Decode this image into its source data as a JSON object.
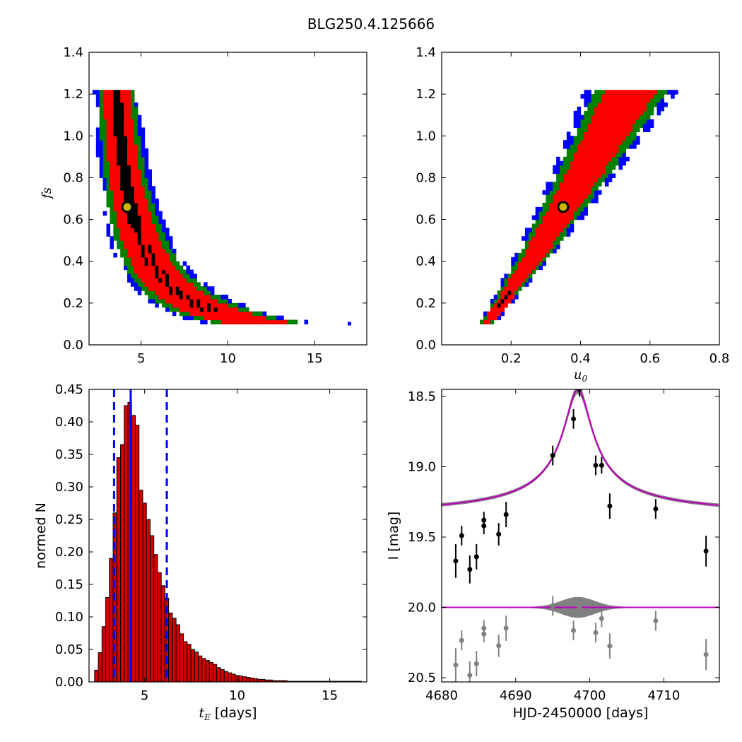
{
  "title": "BLG250.4.125666",
  "colors": {
    "blue": "#0000ff",
    "green": "#008000",
    "red": "#ff0000",
    "black": "#000000",
    "marker_fill": "#c8b400",
    "magenta": "#bf00bf",
    "grey": "#808080",
    "bar": "#d40000"
  },
  "chart_data": [
    {
      "type": "heatmap",
      "panel": "top-left",
      "xlabel": "",
      "ylabel": "f_s",
      "xlim": [
        2,
        18
      ],
      "ylim": [
        0.0,
        1.4
      ],
      "xticks": [
        "5",
        "10",
        "15"
      ],
      "yticks": [
        "0.0",
        "0.2",
        "0.4",
        "0.6",
        "0.8",
        "1.0",
        "1.2",
        "1.4"
      ],
      "best_fit": {
        "tE": 4.2,
        "fs": 0.66
      },
      "levels": [
        "black",
        "red",
        "green",
        "blue"
      ]
    },
    {
      "type": "heatmap",
      "panel": "top-right",
      "xlabel": "u_0",
      "ylabel": "",
      "xlim": [
        0.0,
        0.8
      ],
      "ylim": [
        0.0,
        1.4
      ],
      "xticks": [
        "0.2",
        "0.4",
        "0.6",
        "0.8"
      ],
      "yticks": [
        "0.0",
        "0.2",
        "0.4",
        "0.6",
        "0.8",
        "1.0",
        "1.2",
        "1.4"
      ],
      "best_fit": {
        "u0": 0.35,
        "fs": 0.66
      },
      "levels": [
        "black",
        "red",
        "green",
        "blue"
      ]
    },
    {
      "type": "bar",
      "panel": "bottom-left",
      "xlabel": "t_E [days]",
      "ylabel": "normed N",
      "xlim": [
        2,
        17
      ],
      "ylim": [
        0.0,
        0.45
      ],
      "xticks": [
        "5",
        "10",
        "15"
      ],
      "yticks": [
        "0.00",
        "0.05",
        "0.10",
        "0.15",
        "0.20",
        "0.25",
        "0.30",
        "0.35",
        "0.40",
        "0.45"
      ],
      "bin_start": 2.3,
      "bin_width": 0.2,
      "values": [
        0.018,
        0.045,
        0.085,
        0.13,
        0.19,
        0.26,
        0.345,
        0.365,
        0.425,
        0.43,
        0.41,
        0.395,
        0.295,
        0.275,
        0.25,
        0.225,
        0.196,
        0.168,
        0.148,
        0.129,
        0.106,
        0.098,
        0.088,
        0.074,
        0.062,
        0.058,
        0.05,
        0.046,
        0.04,
        0.036,
        0.033,
        0.03,
        0.027,
        0.022,
        0.019,
        0.016,
        0.014,
        0.012,
        0.01,
        0.009,
        0.008,
        0.007,
        0.006,
        0.005,
        0.004,
        0.004,
        0.003,
        0.003,
        0.002,
        0.002,
        0.002,
        0.002,
        0.001,
        0.001,
        0.001,
        0.001,
        0.001,
        0.001,
        0.001,
        0.001,
        0.001,
        0.001,
        0.001,
        0.001,
        0.001,
        0.001,
        0.001,
        0.001,
        0.001,
        0.001,
        0.001,
        0.001
      ],
      "median": 4.25,
      "percentile_lines": [
        3.35,
        6.2
      ]
    },
    {
      "type": "scatter",
      "panel": "bottom-right",
      "xlabel": "HJD-2450000 [days]",
      "ylabel": "I [mag]",
      "xlim": [
        4680,
        4717.5
      ],
      "ylim": [
        20.53,
        18.45
      ],
      "y_inverted": true,
      "xticks": [
        "4680",
        "4690",
        "4700",
        "4710"
      ],
      "yticks": [
        "18.5",
        "19.0",
        "19.5",
        "20.0",
        "20.5"
      ],
      "baseline": 19.36,
      "peak": {
        "t0": 4698.4,
        "mag": 18.45
      },
      "residual_offset": 20.0,
      "points": [
        {
          "x": 4681.9,
          "y": 19.67,
          "err": 0.12
        },
        {
          "x": 4682.7,
          "y": 19.49,
          "err": 0.07
        },
        {
          "x": 4683.8,
          "y": 19.73,
          "err": 0.1
        },
        {
          "x": 4684.7,
          "y": 19.64,
          "err": 0.09
        },
        {
          "x": 4685.7,
          "y": 19.38,
          "err": 0.06
        },
        {
          "x": 4685.7,
          "y": 19.42,
          "err": 0.06
        },
        {
          "x": 4687.7,
          "y": 19.48,
          "err": 0.08
        },
        {
          "x": 4688.7,
          "y": 19.34,
          "err": 0.09
        },
        {
          "x": 4695.0,
          "y": 18.92,
          "err": 0.07
        },
        {
          "x": 4697.8,
          "y": 18.66,
          "err": 0.07
        },
        {
          "x": 4698.6,
          "y": 18.45,
          "err": 0.05
        },
        {
          "x": 4700.8,
          "y": 18.99,
          "err": 0.07
        },
        {
          "x": 4701.6,
          "y": 18.99,
          "err": 0.06
        },
        {
          "x": 4702.7,
          "y": 19.28,
          "err": 0.09
        },
        {
          "x": 4708.9,
          "y": 19.3,
          "err": 0.07
        },
        {
          "x": 4715.7,
          "y": 19.6,
          "err": 0.11
        }
      ]
    }
  ]
}
